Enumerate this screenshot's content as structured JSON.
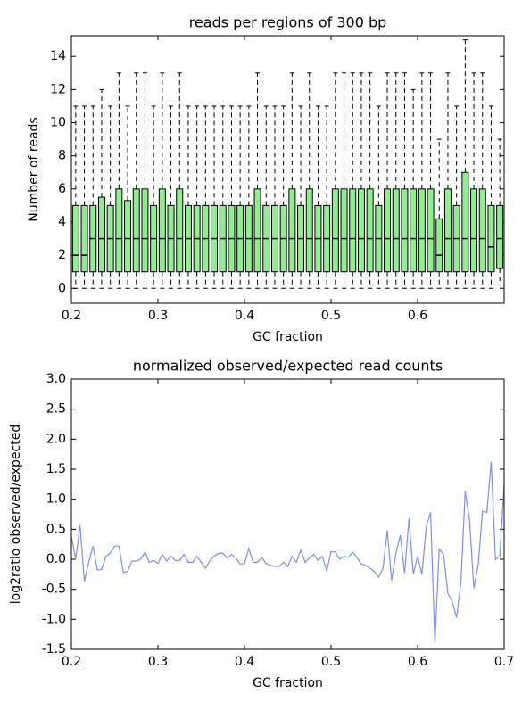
{
  "chart_data": [
    {
      "type": "box",
      "title": "reads per regions of 300 bp",
      "xlabel": "GC fraction",
      "ylabel": "Number of reads",
      "color": "#90ee90",
      "x": [
        0.205,
        0.215,
        0.225,
        0.235,
        0.245,
        0.255,
        0.265,
        0.275,
        0.285,
        0.295,
        0.305,
        0.315,
        0.325,
        0.335,
        0.345,
        0.355,
        0.365,
        0.375,
        0.385,
        0.395,
        0.405,
        0.415,
        0.425,
        0.435,
        0.445,
        0.455,
        0.465,
        0.475,
        0.485,
        0.495,
        0.505,
        0.515,
        0.525,
        0.535,
        0.545,
        0.555,
        0.565,
        0.575,
        0.585,
        0.595,
        0.605,
        0.615,
        0.625,
        0.635,
        0.645,
        0.655,
        0.665,
        0.675,
        0.685,
        0.695
      ],
      "min": [
        0,
        0,
        0,
        0,
        0,
        0,
        0,
        0,
        0,
        0,
        0,
        0,
        0,
        0,
        0,
        0,
        0,
        0,
        0,
        0,
        0,
        0,
        0,
        0,
        0,
        0,
        0,
        0,
        0,
        0,
        0,
        0,
        0,
        0,
        0,
        0,
        0,
        0,
        0,
        0,
        0,
        0,
        0,
        0,
        0,
        0,
        0,
        0,
        0,
        0.2
      ],
      "q1": [
        1,
        1,
        1,
        1,
        1,
        1,
        1,
        1,
        1,
        1,
        1,
        1,
        1,
        1,
        1,
        1,
        1,
        1,
        1,
        1,
        1,
        1,
        1,
        1,
        1,
        1,
        1,
        1,
        1,
        1,
        1,
        1,
        1,
        1,
        1,
        1,
        1,
        1,
        1,
        1,
        1,
        1,
        1,
        1,
        1,
        1,
        1,
        1,
        1,
        1.2
      ],
      "median": [
        2,
        2,
        3,
        3,
        3,
        3,
        3,
        3,
        3,
        3,
        3,
        3,
        3,
        3,
        3,
        3,
        3,
        3,
        3,
        3,
        3,
        3,
        3,
        3,
        3,
        3,
        3,
        3,
        3,
        3,
        3,
        3,
        3,
        3,
        3,
        3,
        3,
        3,
        3,
        3,
        3,
        3,
        2,
        3,
        3,
        3,
        3,
        3,
        2.5,
        3
      ],
      "q3": [
        5,
        5,
        5,
        5.5,
        5,
        6,
        5.3,
        6,
        6,
        5,
        6,
        5,
        6,
        5,
        5,
        5,
        5,
        5,
        5,
        5,
        5,
        6,
        5,
        5,
        5,
        6,
        5,
        6,
        5,
        5,
        6,
        6,
        6,
        6,
        6,
        5,
        6,
        6,
        6,
        6,
        6,
        6,
        4.2,
        6,
        5,
        7,
        6,
        6,
        5,
        5
      ],
      "max": [
        11,
        11,
        11,
        12,
        11,
        13,
        11,
        13,
        13,
        11,
        13,
        11,
        13,
        11,
        11,
        11,
        11,
        11,
        11,
        11,
        11,
        13,
        11,
        11,
        11,
        13,
        11,
        13,
        11,
        11,
        13,
        13,
        13,
        13,
        13,
        11,
        13,
        13,
        13,
        12,
        13,
        13,
        9,
        13,
        11,
        15,
        13,
        13,
        11,
        9
      ],
      "xlim": [
        0.2,
        0.7
      ],
      "xticks": [
        0.2,
        0.3,
        0.4,
        0.5,
        0.6
      ],
      "ylim": [
        -0.9,
        15.25
      ],
      "yticks": [
        0,
        2,
        4,
        6,
        8,
        10,
        12,
        14
      ]
    },
    {
      "type": "line",
      "title": "normalized observed/expected read counts",
      "xlabel": "GC fraction",
      "ylabel": "log2ratio observed/expected",
      "color": "#8090e0",
      "x": [
        0.2,
        0.205,
        0.21,
        0.215,
        0.22,
        0.225,
        0.23,
        0.235,
        0.24,
        0.245,
        0.25,
        0.255,
        0.26,
        0.265,
        0.27,
        0.275,
        0.28,
        0.285,
        0.29,
        0.295,
        0.3,
        0.305,
        0.31,
        0.315,
        0.32,
        0.325,
        0.33,
        0.335,
        0.34,
        0.345,
        0.35,
        0.355,
        0.36,
        0.365,
        0.37,
        0.375,
        0.38,
        0.385,
        0.39,
        0.395,
        0.4,
        0.405,
        0.41,
        0.415,
        0.42,
        0.425,
        0.43,
        0.435,
        0.44,
        0.445,
        0.45,
        0.455,
        0.46,
        0.465,
        0.47,
        0.475,
        0.48,
        0.485,
        0.49,
        0.495,
        0.5,
        0.505,
        0.51,
        0.515,
        0.52,
        0.525,
        0.53,
        0.535,
        0.54,
        0.545,
        0.55,
        0.555,
        0.56,
        0.565,
        0.57,
        0.575,
        0.58,
        0.585,
        0.59,
        0.595,
        0.6,
        0.605,
        0.61,
        0.615,
        0.62,
        0.625,
        0.63,
        0.635,
        0.64,
        0.645,
        0.65,
        0.655,
        0.66,
        0.665,
        0.67,
        0.675,
        0.68,
        0.685,
        0.69,
        0.695,
        0.7
      ],
      "values": [
        0.38,
        0,
        0.57,
        -0.37,
        -0.05,
        0.22,
        -0.18,
        -0.17,
        0.05,
        0.1,
        0.22,
        0.22,
        -0.22,
        -0.2,
        -0.03,
        -0.03,
        0,
        0.12,
        -0.05,
        -0.02,
        -0.07,
        0.08,
        -0.03,
        0.05,
        -0.02,
        -0.02,
        0.08,
        -0.05,
        -0.05,
        0.05,
        -0.05,
        -0.15,
        -0.02,
        0.05,
        0.1,
        0.1,
        0.02,
        0.08,
        0.02,
        -0.08,
        -0.07,
        0.18,
        -0.05,
        -0.05,
        0.03,
        -0.07,
        -0.1,
        -0.12,
        -0.12,
        -0.05,
        -0.12,
        0.05,
        -0.05,
        0.15,
        -0.05,
        0.02,
        0.08,
        -0.02,
        0.05,
        -0.2,
        0.13,
        0.12,
        0,
        0.05,
        0.03,
        0.12,
        0.03,
        -0.08,
        -0.1,
        -0.15,
        -0.2,
        -0.3,
        -0.15,
        0.48,
        -0.35,
        0.1,
        0.4,
        -0.23,
        0.68,
        -0.25,
        0.05,
        -0.25,
        0.55,
        0.78,
        -1.4,
        0.17,
        0.08,
        -0.57,
        -0.7,
        -0.97,
        -0.4,
        1.13,
        0.65,
        -0.48,
        -0.1,
        0.8,
        0.78,
        1.62,
        0,
        0.05,
        1.25
      ],
      "xlim": [
        0.2,
        0.7
      ],
      "xticks": [
        0.2,
        0.3,
        0.4,
        0.5,
        0.6,
        0.7
      ],
      "ylim": [
        -1.5,
        3.0
      ],
      "yticks": [
        -1.5,
        {
          "value": -1.0,
          "label": "-1.0"
        },
        -0.5,
        {
          "value": 0,
          "label": "0.0"
        },
        0.5,
        {
          "value": 1,
          "label": "1.0"
        },
        1.5,
        {
          "value": 2,
          "label": "2.0"
        },
        2.5,
        {
          "value": 3,
          "label": "3.0"
        }
      ]
    }
  ]
}
